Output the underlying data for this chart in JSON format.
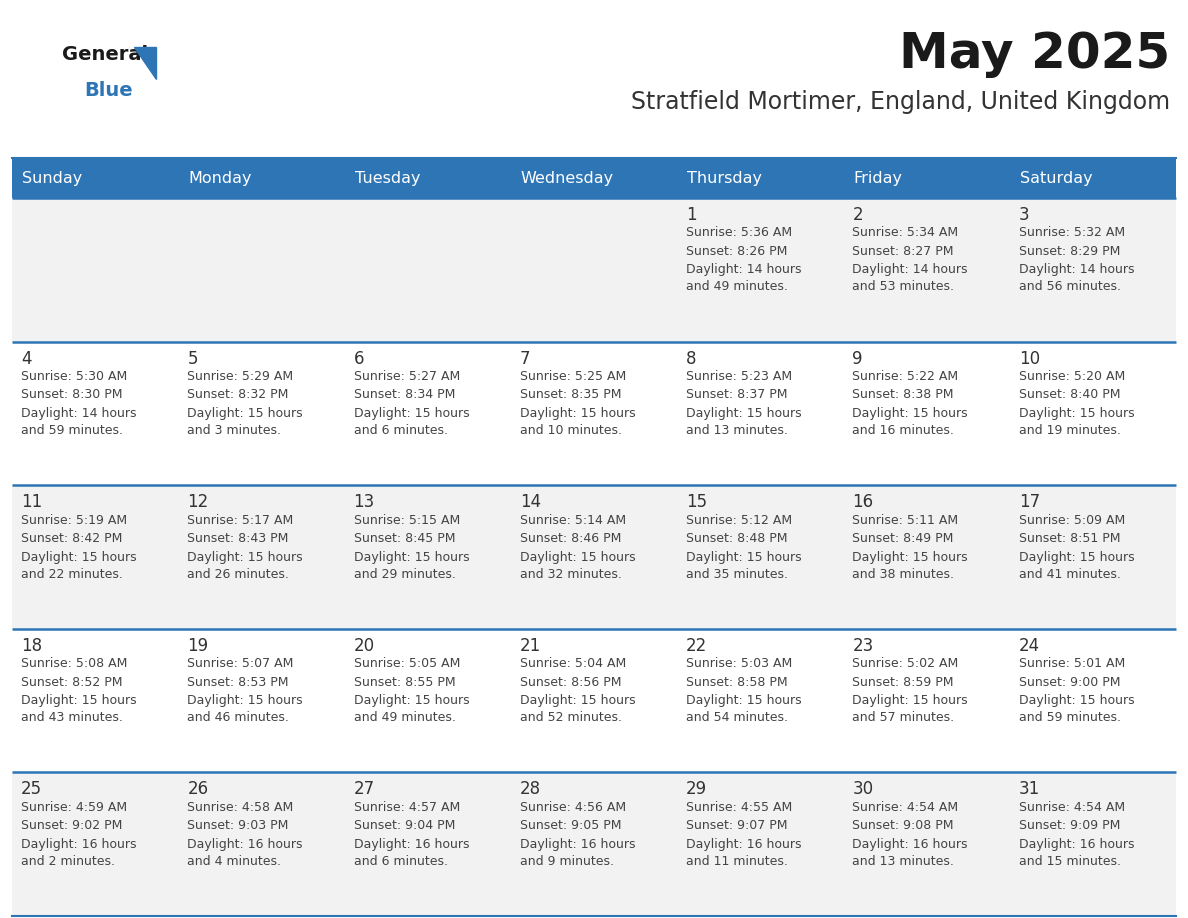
{
  "title": "May 2025",
  "subtitle": "Stratfield Mortimer, England, United Kingdom",
  "days_of_week": [
    "Sunday",
    "Monday",
    "Tuesday",
    "Wednesday",
    "Thursday",
    "Friday",
    "Saturday"
  ],
  "header_bg": "#2E75B6",
  "header_text": "#FFFFFF",
  "cell_bg_odd": "#F2F2F2",
  "cell_bg_even": "#FFFFFF",
  "row_sep_color": "#2E75B6",
  "day_num_color": "#333333",
  "text_color": "#444444",
  "title_color": "#1a1a1a",
  "subtitle_color": "#333333",
  "logo_general_color": "#1a1a1a",
  "logo_blue_color": "#2E75B6",
  "weeks": [
    [
      {
        "day": "",
        "sunrise": "",
        "sunset": "",
        "daylight": ""
      },
      {
        "day": "",
        "sunrise": "",
        "sunset": "",
        "daylight": ""
      },
      {
        "day": "",
        "sunrise": "",
        "sunset": "",
        "daylight": ""
      },
      {
        "day": "",
        "sunrise": "",
        "sunset": "",
        "daylight": ""
      },
      {
        "day": "1",
        "sunrise": "5:36 AM",
        "sunset": "8:26 PM",
        "daylight": "14 hours\nand 49 minutes."
      },
      {
        "day": "2",
        "sunrise": "5:34 AM",
        "sunset": "8:27 PM",
        "daylight": "14 hours\nand 53 minutes."
      },
      {
        "day": "3",
        "sunrise": "5:32 AM",
        "sunset": "8:29 PM",
        "daylight": "14 hours\nand 56 minutes."
      }
    ],
    [
      {
        "day": "4",
        "sunrise": "5:30 AM",
        "sunset": "8:30 PM",
        "daylight": "14 hours\nand 59 minutes."
      },
      {
        "day": "5",
        "sunrise": "5:29 AM",
        "sunset": "8:32 PM",
        "daylight": "15 hours\nand 3 minutes."
      },
      {
        "day": "6",
        "sunrise": "5:27 AM",
        "sunset": "8:34 PM",
        "daylight": "15 hours\nand 6 minutes."
      },
      {
        "day": "7",
        "sunrise": "5:25 AM",
        "sunset": "8:35 PM",
        "daylight": "15 hours\nand 10 minutes."
      },
      {
        "day": "8",
        "sunrise": "5:23 AM",
        "sunset": "8:37 PM",
        "daylight": "15 hours\nand 13 minutes."
      },
      {
        "day": "9",
        "sunrise": "5:22 AM",
        "sunset": "8:38 PM",
        "daylight": "15 hours\nand 16 minutes."
      },
      {
        "day": "10",
        "sunrise": "5:20 AM",
        "sunset": "8:40 PM",
        "daylight": "15 hours\nand 19 minutes."
      }
    ],
    [
      {
        "day": "11",
        "sunrise": "5:19 AM",
        "sunset": "8:42 PM",
        "daylight": "15 hours\nand 22 minutes."
      },
      {
        "day": "12",
        "sunrise": "5:17 AM",
        "sunset": "8:43 PM",
        "daylight": "15 hours\nand 26 minutes."
      },
      {
        "day": "13",
        "sunrise": "5:15 AM",
        "sunset": "8:45 PM",
        "daylight": "15 hours\nand 29 minutes."
      },
      {
        "day": "14",
        "sunrise": "5:14 AM",
        "sunset": "8:46 PM",
        "daylight": "15 hours\nand 32 minutes."
      },
      {
        "day": "15",
        "sunrise": "5:12 AM",
        "sunset": "8:48 PM",
        "daylight": "15 hours\nand 35 minutes."
      },
      {
        "day": "16",
        "sunrise": "5:11 AM",
        "sunset": "8:49 PM",
        "daylight": "15 hours\nand 38 minutes."
      },
      {
        "day": "17",
        "sunrise": "5:09 AM",
        "sunset": "8:51 PM",
        "daylight": "15 hours\nand 41 minutes."
      }
    ],
    [
      {
        "day": "18",
        "sunrise": "5:08 AM",
        "sunset": "8:52 PM",
        "daylight": "15 hours\nand 43 minutes."
      },
      {
        "day": "19",
        "sunrise": "5:07 AM",
        "sunset": "8:53 PM",
        "daylight": "15 hours\nand 46 minutes."
      },
      {
        "day": "20",
        "sunrise": "5:05 AM",
        "sunset": "8:55 PM",
        "daylight": "15 hours\nand 49 minutes."
      },
      {
        "day": "21",
        "sunrise": "5:04 AM",
        "sunset": "8:56 PM",
        "daylight": "15 hours\nand 52 minutes."
      },
      {
        "day": "22",
        "sunrise": "5:03 AM",
        "sunset": "8:58 PM",
        "daylight": "15 hours\nand 54 minutes."
      },
      {
        "day": "23",
        "sunrise": "5:02 AM",
        "sunset": "8:59 PM",
        "daylight": "15 hours\nand 57 minutes."
      },
      {
        "day": "24",
        "sunrise": "5:01 AM",
        "sunset": "9:00 PM",
        "daylight": "15 hours\nand 59 minutes."
      }
    ],
    [
      {
        "day": "25",
        "sunrise": "4:59 AM",
        "sunset": "9:02 PM",
        "daylight": "16 hours\nand 2 minutes."
      },
      {
        "day": "26",
        "sunrise": "4:58 AM",
        "sunset": "9:03 PM",
        "daylight": "16 hours\nand 4 minutes."
      },
      {
        "day": "27",
        "sunrise": "4:57 AM",
        "sunset": "9:04 PM",
        "daylight": "16 hours\nand 6 minutes."
      },
      {
        "day": "28",
        "sunrise": "4:56 AM",
        "sunset": "9:05 PM",
        "daylight": "16 hours\nand 9 minutes."
      },
      {
        "day": "29",
        "sunrise": "4:55 AM",
        "sunset": "9:07 PM",
        "daylight": "16 hours\nand 11 minutes."
      },
      {
        "day": "30",
        "sunrise": "4:54 AM",
        "sunset": "9:08 PM",
        "daylight": "16 hours\nand 13 minutes."
      },
      {
        "day": "31",
        "sunrise": "4:54 AM",
        "sunset": "9:09 PM",
        "daylight": "16 hours\nand 15 minutes."
      }
    ]
  ]
}
